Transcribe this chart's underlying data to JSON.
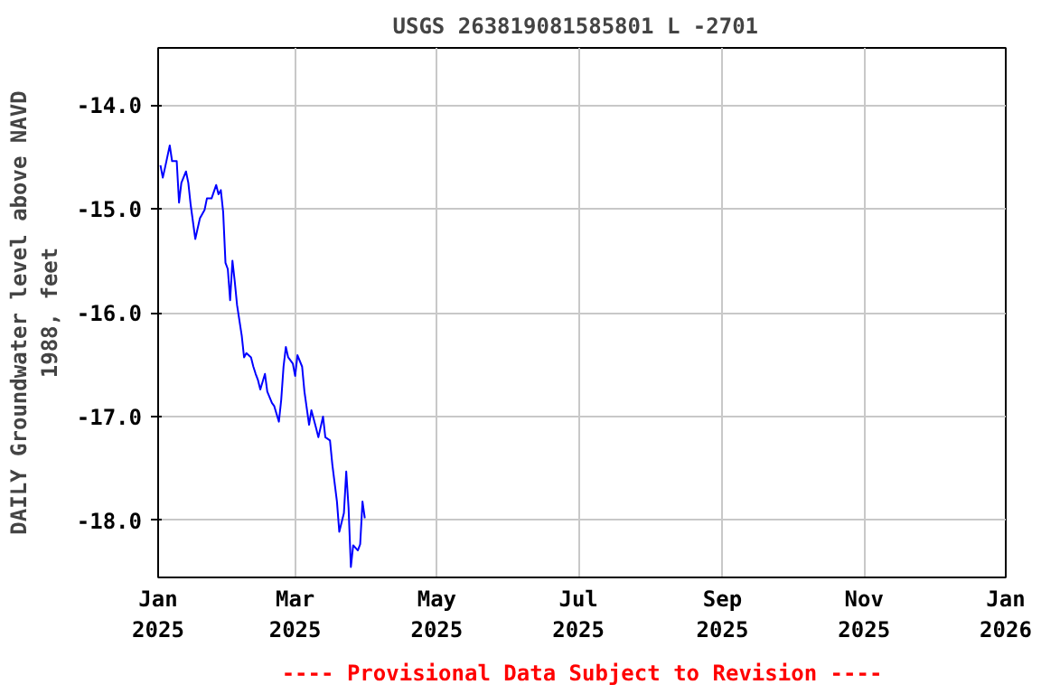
{
  "chart_data": {
    "type": "line",
    "title": "USGS 263819081585801 L  -2701",
    "ylabel": "DAILY Groundwater level above NAVD 1988, feet",
    "annotations": [
      "---- Provisional Data Subject to Revision ----"
    ],
    "x": [
      "2025-01-02",
      "2025-01-03",
      "2025-01-04",
      "2025-01-06",
      "2025-01-07",
      "2025-01-09",
      "2025-01-10",
      "2025-01-11",
      "2025-01-13",
      "2025-01-14",
      "2025-01-15",
      "2025-01-17",
      "2025-01-19",
      "2025-01-21",
      "2025-01-22",
      "2025-01-24",
      "2025-01-26",
      "2025-01-27",
      "2025-01-28",
      "2025-01-29",
      "2025-01-30",
      "2025-01-31",
      "2025-02-01",
      "2025-02-02",
      "2025-02-03",
      "2025-02-04",
      "2025-02-06",
      "2025-02-07",
      "2025-02-08",
      "2025-02-10",
      "2025-02-11",
      "2025-02-12",
      "2025-02-13",
      "2025-02-14",
      "2025-02-16",
      "2025-02-17",
      "2025-02-19",
      "2025-02-20",
      "2025-02-22",
      "2025-02-23",
      "2025-02-24",
      "2025-02-25",
      "2025-02-26",
      "2025-02-28",
      "2025-03-01",
      "2025-03-02",
      "2025-03-04",
      "2025-03-05",
      "2025-03-07",
      "2025-03-08",
      "2025-03-10",
      "2025-03-11",
      "2025-03-13",
      "2025-03-14",
      "2025-03-16",
      "2025-03-17",
      "2025-03-19",
      "2025-03-20",
      "2025-03-22",
      "2025-03-23",
      "2025-03-24",
      "2025-03-25",
      "2025-03-26",
      "2025-03-28",
      "2025-03-29",
      "2025-03-30",
      "2025-03-31"
    ],
    "series": [
      {
        "color": "#0000ff",
        "values": [
          -14.58,
          -14.7,
          -14.6,
          -14.39,
          -14.54,
          -14.54,
          -14.94,
          -14.75,
          -14.64,
          -14.75,
          -14.96,
          -15.29,
          -15.09,
          -15.01,
          -14.9,
          -14.9,
          -14.77,
          -14.86,
          -14.82,
          -15.03,
          -15.52,
          -15.58,
          -15.88,
          -15.5,
          -15.7,
          -15.93,
          -16.22,
          -16.43,
          -16.39,
          -16.43,
          -16.52,
          -16.59,
          -16.65,
          -16.74,
          -16.59,
          -16.76,
          -16.87,
          -16.9,
          -17.05,
          -16.84,
          -16.52,
          -16.33,
          -16.43,
          -16.49,
          -16.61,
          -16.41,
          -16.52,
          -16.76,
          -17.08,
          -16.94,
          -17.11,
          -17.2,
          -17.0,
          -17.2,
          -17.23,
          -17.46,
          -17.82,
          -18.11,
          -17.93,
          -17.53,
          -17.88,
          -18.45,
          -18.24,
          -18.29,
          -18.23,
          -17.82,
          -17.98
        ]
      }
    ],
    "xlim": [
      "2025-01-01",
      "2026-01-01"
    ],
    "xticks": [
      {
        "value": "2025-01-01",
        "label": "Jan\n2025"
      },
      {
        "value": "2025-03-01",
        "label": "Mar\n2025"
      },
      {
        "value": "2025-05-01",
        "label": "May\n2025"
      },
      {
        "value": "2025-07-01",
        "label": "Jul\n2025"
      },
      {
        "value": "2025-09-01",
        "label": "Sep\n2025"
      },
      {
        "value": "2025-11-01",
        "label": "Nov\n2025"
      },
      {
        "value": "2026-01-01",
        "label": "Jan\n2026"
      }
    ],
    "ylim": [
      -18.55,
      -13.45
    ],
    "yticks": [
      {
        "value": -18,
        "label": "-18.0"
      },
      {
        "value": -17,
        "label": "-17.0"
      },
      {
        "value": -16,
        "label": "-16.0"
      },
      {
        "value": -15,
        "label": "-15.0"
      },
      {
        "value": -14,
        "label": "-14.0"
      }
    ],
    "grid": true
  }
}
